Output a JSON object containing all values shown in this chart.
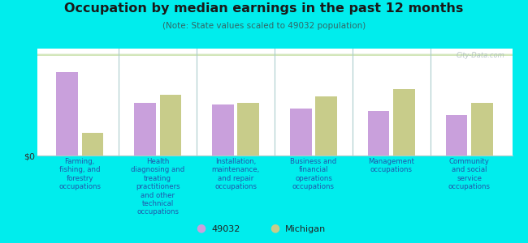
{
  "title": "Occupation by median earnings in the past 12 months",
  "subtitle": "(Note: State values scaled to 49032 population)",
  "background_color": "#00eded",
  "bar_color_49032": "#c9a0dc",
  "bar_color_michigan": "#c8cc8a",
  "ylabel": "$0",
  "categories": [
    "Farming,\nfishing, and\nforestry\noccupations",
    "Health\ndiagnosing and\ntreating\npractitioners\nand other\ntechnical\noccupations",
    "Installation,\nmaintenance,\nand repair\noccupations",
    "Business and\nfinancial\noperations\noccupations",
    "Management\noccupations",
    "Community\nand social\nservice\noccupations"
  ],
  "values_49032": [
    0.82,
    0.52,
    0.5,
    0.46,
    0.44,
    0.4
  ],
  "values_michigan": [
    0.22,
    0.6,
    0.52,
    0.58,
    0.65,
    0.52
  ],
  "legend_49032": "49032",
  "legend_michigan": "Michigan",
  "watermark": "City-Data.com",
  "title_color": "#1a1a1a",
  "subtitle_color": "#336666",
  "label_color": "#2255aa",
  "ylabel_color": "#333333",
  "watermark_color": "#aabbbb",
  "divider_color": "#aacccc",
  "plot_bg_top": "#eef5e8",
  "plot_bg_bottom": "#d8e8c0"
}
